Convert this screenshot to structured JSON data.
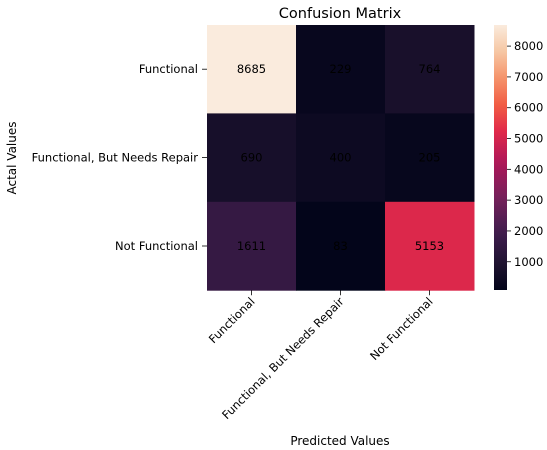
{
  "chart_data": {
    "type": "heatmap",
    "title": "Confusion Matrix",
    "xlabel": "Predicted Values",
    "ylabel": "Actal Values",
    "x_categories": [
      "Functional",
      "Functional, But Needs Repair",
      "Not Functional"
    ],
    "y_categories": [
      "Functional",
      "Functional, But Needs Repair",
      "Not Functional"
    ],
    "values": [
      [
        8685,
        229,
        764
      ],
      [
        690,
        400,
        205
      ],
      [
        1611,
        83,
        5153
      ]
    ],
    "colorbar": {
      "colormap": "rocket",
      "range": [
        83,
        8685
      ],
      "ticks": [
        1000,
        2000,
        3000,
        4000,
        5000,
        6000,
        7000,
        8000
      ]
    }
  }
}
